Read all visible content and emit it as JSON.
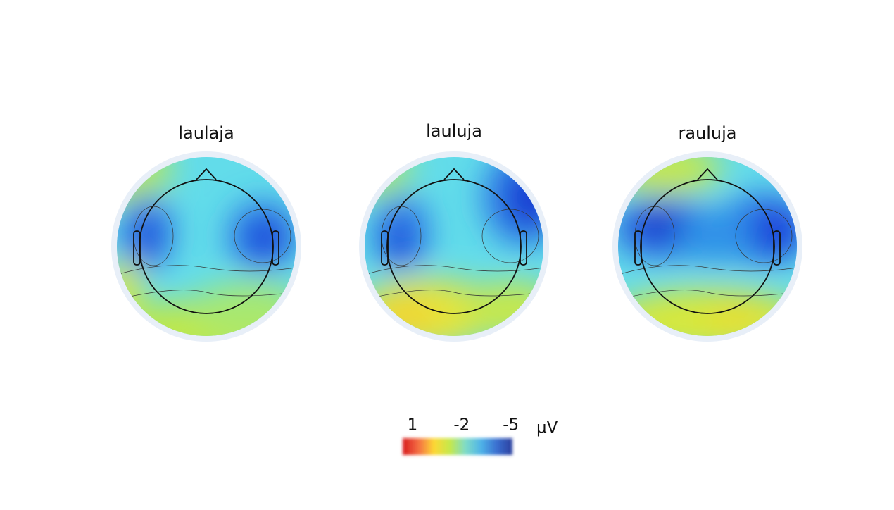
{
  "maps": [
    {
      "title": "laulaja"
    },
    {
      "title": "lauluja"
    },
    {
      "title": "rauluja"
    }
  ],
  "colorbar": {
    "ticks": [
      1,
      -2,
      -5
    ],
    "lim": [
      1.6,
      -5.1
    ],
    "unit": "µV",
    "colors": [
      "#d7191c",
      "#f46d43",
      "#fdd835",
      "#c6e84a",
      "#7fdcc8",
      "#4fb3e8",
      "#3a6fd0",
      "#2b3f9e"
    ]
  }
}
